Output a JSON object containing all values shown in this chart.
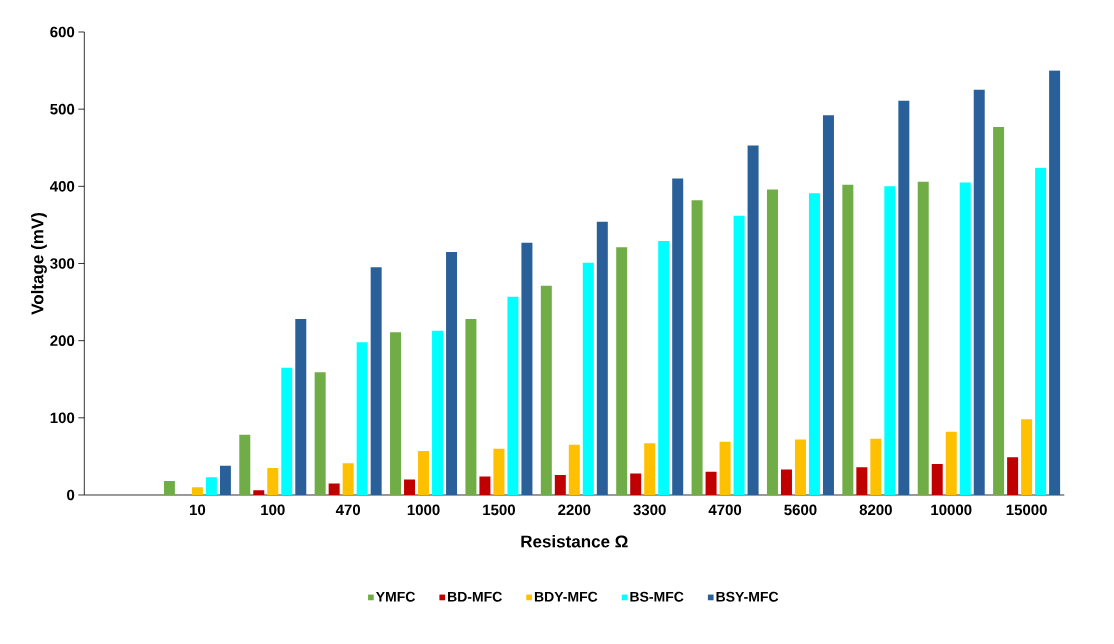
{
  "chart_data": {
    "type": "bar",
    "xlabel": "Resistance Ω",
    "ylabel": "Voltage (mV)",
    "categories": [
      null,
      "10",
      "100",
      "470",
      "1000",
      "1500",
      "2200",
      "3300",
      "4700",
      "5600",
      "8200",
      "10000",
      "15000"
    ],
    "series": [
      {
        "name": "YMFC",
        "color": "#70ad47",
        "values": [
          null,
          18,
          78,
          159,
          211,
          228,
          271,
          321,
          382,
          396,
          402,
          406,
          477
        ]
      },
      {
        "name": "BD-MFC",
        "color": "#c00000",
        "values": [
          null,
          null,
          6,
          15,
          20,
          24,
          26,
          28,
          30,
          33,
          36,
          40,
          49
        ]
      },
      {
        "name": "BDY-MFC",
        "color": "#ffc000",
        "values": [
          null,
          10,
          35,
          41,
          57,
          60,
          65,
          67,
          69,
          72,
          73,
          82,
          98
        ]
      },
      {
        "name": "BS-MFC",
        "color": "#00ffff",
        "values": [
          null,
          23,
          165,
          198,
          213,
          257,
          301,
          329,
          362,
          391,
          400,
          405,
          424
        ]
      },
      {
        "name": "BSY-MFC",
        "color": "#2a6099",
        "values": [
          null,
          38,
          228,
          295,
          315,
          327,
          354,
          410,
          453,
          492,
          511,
          525,
          550
        ]
      }
    ],
    "ylim": [
      0,
      600
    ],
    "yticks": [
      0,
      100,
      200,
      300,
      400,
      500,
      600
    ],
    "legend": "bottom"
  }
}
